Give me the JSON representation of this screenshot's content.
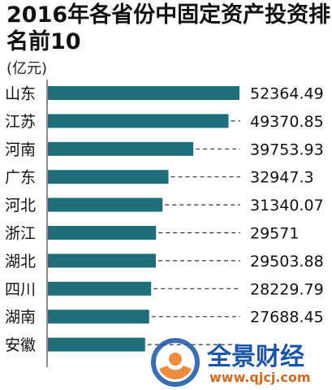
{
  "chart_data": {
    "type": "bar",
    "orientation": "horizontal",
    "title": "2016年各省份中固定资产投资排名前10",
    "unit": "(亿元)",
    "categories": [
      "山东",
      "江苏",
      "河南",
      "广东",
      "河北",
      "浙江",
      "湖北",
      "四川",
      "湖南",
      "安徽"
    ],
    "values": [
      52364.49,
      49370.85,
      39753.93,
      32947.3,
      31340.07,
      29571,
      29503.88,
      28229.79,
      27688.45,
      26577.1
    ],
    "value_labels": [
      "52364.49",
      "49370.85",
      "39753.93",
      "32947.3",
      "31340.07",
      "29571",
      "29503.88",
      "28229.79",
      "27688.45",
      ""
    ],
    "bar_color": "#1e6e7c",
    "leader_line": "dashed",
    "xlim": [
      0,
      52364.49
    ]
  },
  "watermark": {
    "brand": "全景财经",
    "url": "www.qjcj.com",
    "logo_icon": "circular-logo-icon",
    "colors": {
      "brand_blue": "#1a56a8",
      "accent_orange": "#e8781e"
    }
  }
}
